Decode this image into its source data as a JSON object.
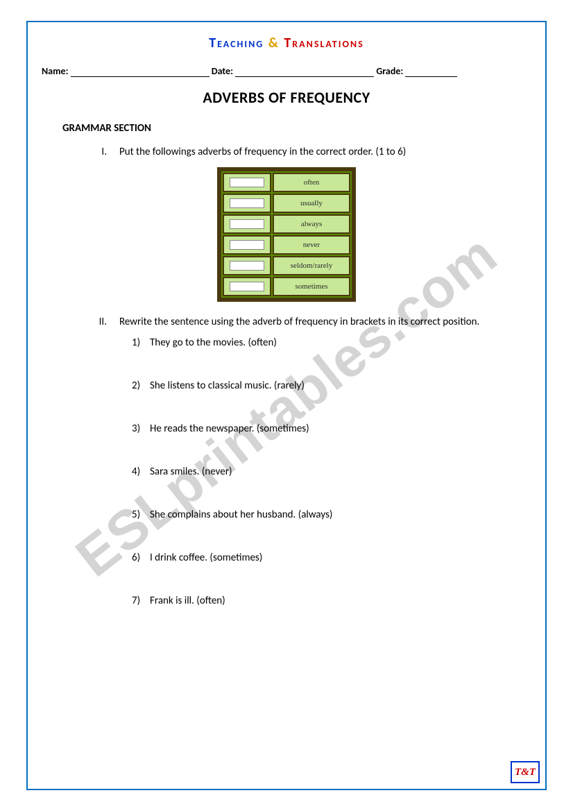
{
  "header": {
    "teaching": "Teaching",
    "amp": "&",
    "translations": "Translations"
  },
  "infoLine": {
    "nameLabel": "Name:",
    "dateLabel": "Date:",
    "gradeLabel": "Grade:"
  },
  "mainTitle": "ADVERBS OF FREQUENCY",
  "sectionLabel": "GRAMMAR SECTION",
  "instructions": [
    {
      "roman": "I.",
      "text": "Put the followings adverbs of frequency in the correct order. (1 to 6)"
    },
    {
      "roman": "II.",
      "text": "Rewrite the sentence using the adverb of frequency in brackets in its correct position."
    }
  ],
  "adverbBox": {
    "items": [
      "often",
      "usually",
      "always",
      "never",
      "seldom/rarely",
      "sometimes"
    ],
    "bgColor": "#5a8a00",
    "borderColor": "#4a3810",
    "cellBg": "#c8e898",
    "inputBg": "#ffffff"
  },
  "questions": [
    {
      "num": "1)",
      "text": "They go to the movies. (often)"
    },
    {
      "num": "2)",
      "text": "She listens to classical music. (rarely)"
    },
    {
      "num": "3)",
      "text": "He reads the newspaper. (sometimes)"
    },
    {
      "num": "4)",
      "text": "Sara smiles. (never)"
    },
    {
      "num": "5)",
      "text": "She complains about her husband. (always)"
    },
    {
      "num": "6)",
      "text": "I drink coffee. (sometimes)"
    },
    {
      "num": "7)",
      "text": "Frank is ill. (often)"
    }
  ],
  "watermark": "ESLprintables.com",
  "logo": "T&T"
}
